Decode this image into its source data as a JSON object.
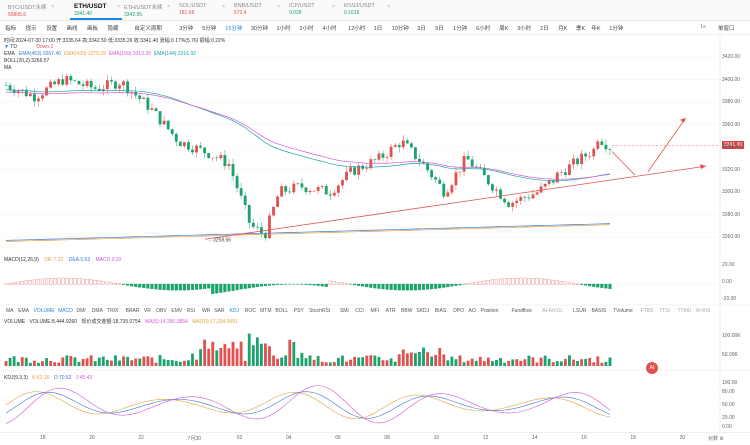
{
  "tabs": [
    {
      "name": "BTC/USDT永续",
      "price": "56805.6",
      "price_color": "#e05252",
      "active": false
    },
    {
      "name": "ETH/USDT",
      "price": "3341.40",
      "price_color": "#1aa36b",
      "active": true
    },
    {
      "name": "ETH/USDT永续",
      "price": "3342.95",
      "price_color": "#1aa36b",
      "active": false
    },
    {
      "name": "SOL/USDT",
      "price": "181.68",
      "price_color": "#e05252",
      "active": false
    },
    {
      "name": "BNB/USDT",
      "price": "572.4",
      "price_color": "#e05252",
      "active": false
    },
    {
      "name": "ICP/USDT",
      "price": "9.028",
      "price_color": "#1aa36b",
      "active": false
    },
    {
      "name": "RSS3/USDT",
      "price": "0.1619",
      "price_color": "#1aa36b",
      "active": false
    }
  ],
  "toolbar": {
    "items": [
      "指标",
      "提示",
      "设置",
      "画线",
      "画板",
      "隐藏",
      "自定义周期",
      "3分钟",
      "5分钟",
      "15分钟",
      "30分钟",
      "1小时",
      "2小时",
      "4小时",
      "12小时",
      "1日",
      "10分钟",
      "3日",
      "5日",
      "1分钟",
      "6小时",
      "周K",
      "3小时",
      "2日",
      "月K",
      "季K",
      "年K",
      "1分钟"
    ],
    "selected": "15分钟",
    "right_label": "1s",
    "layout_label": "单窗口"
  },
  "info": {
    "ohlc": "时间:2024-07-30 17:00  开:3335.64  高:3342.50  低:3335.26  收:3341.40  涨幅:0.17%(5.76)  振幅:0.22%",
    "td": "TD",
    "td_value": "Down:2",
    "ema_label": "EMA",
    "ema_values": [
      {
        "text": "EMA(453):3267.40",
        "color": "#3a7bd5"
      },
      {
        "text": "EMA(430):3270.29",
        "color": "#e6a23c"
      },
      {
        "text": "EMA(169):3313.28",
        "color": "#d15ad1"
      },
      {
        "text": "EMA(144):3316.92",
        "color": "#1aa3a3"
      }
    ],
    "boll": "BOLL(20,2):3266.57",
    "ma": "MA"
  },
  "price_axis": [
    "3420.00",
    "3400.00",
    "3380.00",
    "3360.00",
    "3340.00",
    "3320.00",
    "3300.00",
    "3280.00",
    "3260.00"
  ],
  "current_price": "3341.40",
  "low_label": "3258.56",
  "macd": {
    "label": "MACD(12,26,9)",
    "dif": "DIF:7.22",
    "dea": "DEA:5.63",
    "macd": "MACD:3.20",
    "axis": [
      "20.00",
      "0.00",
      "-20.00"
    ]
  },
  "indicators": [
    "MA",
    "EMA",
    "VOLUME",
    "MACD",
    "DMI",
    "DMA",
    "TRIX",
    "BRAR",
    "VR",
    "OBV",
    "EMV",
    "RSI",
    "WR",
    "SAR",
    "KDJ",
    "ROC",
    "MTM",
    "BOLL",
    "PSY",
    "StochRSI",
    "SMI",
    "CCI",
    "MFI",
    "ATR",
    "BBW",
    "SKDJ",
    "BIAS",
    "DPO",
    "AO",
    "Position",
    "Fundflow",
    "AI-AiVOL",
    "LSUR",
    "BASIS",
    "TVolume",
    "FTBS",
    "TTSI",
    "TTMU",
    "AI-BSI"
  ],
  "selected_indicators": [
    "MACD",
    "VOLUME",
    "KDJ"
  ],
  "volume": {
    "label": "VOLUME",
    "value": "VOLUME:8,444.9260",
    "amount": "现价成交金额:18,735.0754",
    "ma5": "MA(5):14,390.0854",
    "ma10": "MA(10):17,204.9551",
    "axis": [
      "100.00K",
      "50.00K"
    ],
    "badge": "AI"
  },
  "kdj": {
    "label": "KDJ(9,3,3)",
    "k": "K:62.16",
    "d": "D:70.52",
    "j": "J:45.43",
    "axis": [
      "100.00",
      "80.00",
      "50.00",
      "20.00",
      "0.00"
    ]
  },
  "time_axis": [
    "18",
    "20",
    "22",
    "7月30",
    "02",
    "04",
    "06",
    "08",
    "10",
    "12",
    "14",
    "16",
    "18",
    "20"
  ],
  "time_axis_right": "对数 ⚙",
  "colors": {
    "up": "#e05252",
    "down": "#1aa36b",
    "accent": "#1e88e5"
  }
}
